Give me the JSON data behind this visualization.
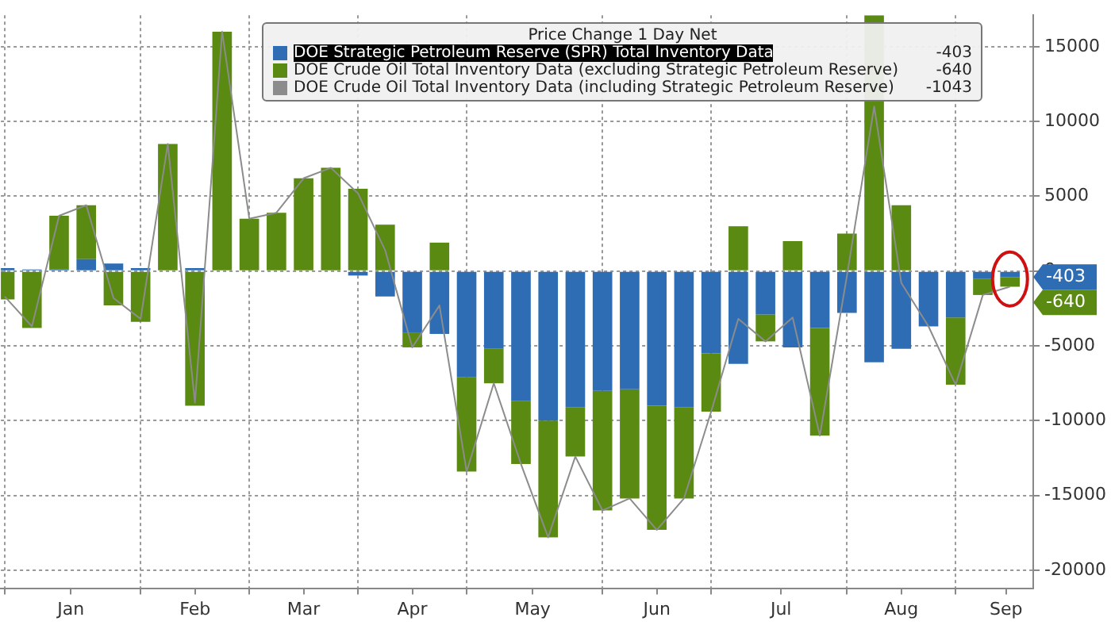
{
  "chart_data": {
    "type": "bar",
    "legend_title": "Price Change 1 Day Net",
    "x": [
      "--01-02",
      "--01-09",
      "--01-16",
      "--01-23",
      "--01-30",
      "--02-06",
      "--02-13",
      "--02-20",
      "--02-27",
      "--03-06",
      "--03-13",
      "--03-20",
      "--03-27",
      "--04-03",
      "--04-10",
      "--04-17",
      "--04-24",
      "--05-01",
      "--05-08",
      "--05-15",
      "--05-22",
      "--05-29",
      "--06-05",
      "--06-12",
      "--06-19",
      "--06-26",
      "--07-03",
      "--07-10",
      "--07-17",
      "--07-24",
      "--07-31",
      "--08-07",
      "--08-14",
      "--08-21",
      "--08-28",
      "--09-04",
      "--09-11",
      "--09-18"
    ],
    "series": [
      {
        "name": "DOE Strategic Petroleum Reserve (SPR) Total Inventory Data",
        "color": "#2e6db4",
        "values": [
          200,
          100,
          100,
          800,
          500,
          200,
          0,
          200,
          0,
          0,
          0,
          0,
          0,
          -300,
          -1700,
          -4100,
          -4200,
          -7100,
          -5200,
          -8700,
          -10000,
          -9100,
          -8000,
          -7900,
          -9000,
          -9100,
          -5500,
          -6200,
          -2900,
          -5100,
          -3800,
          -2800,
          -6100,
          -5200,
          -3700,
          -3100,
          -500,
          -403
        ]
      },
      {
        "name": "DOE Crude Oil Total Inventory Data (excluding Strategic Petroleum Reserve)",
        "color": "#5a8a12",
        "values": [
          -1900,
          -3800,
          3600,
          3600,
          -2300,
          -3400,
          8500,
          -9000,
          16000,
          3500,
          3900,
          6200,
          6900,
          5500,
          3100,
          -1000,
          1900,
          -6300,
          -2300,
          -4200,
          -7800,
          -3300,
          -8000,
          -7300,
          -8300,
          -6100,
          -3900,
          3000,
          -1800,
          2000,
          -7200,
          2500,
          17100,
          4400,
          0,
          -4500,
          -1100,
          -640
        ]
      },
      {
        "name": "DOE Crude Oil Total Inventory Data (including Strategic Petroleum Reserve)",
        "type": "line",
        "color": "#8c8c8c",
        "values": [
          -1700,
          -3700,
          3700,
          4400,
          -1800,
          -3200,
          8500,
          -8800,
          16000,
          3500,
          3900,
          6200,
          6900,
          5200,
          1400,
          -5100,
          -2300,
          -13400,
          -7500,
          -12900,
          -17800,
          -12400,
          -16000,
          -15200,
          -17300,
          -15200,
          -9400,
          -3200,
          -4700,
          -3100,
          -11000,
          -300,
          11000,
          -800,
          -3700,
          -7600,
          -1600,
          -1043
        ]
      }
    ],
    "stacked": true,
    "marker": "none",
    "xlim": [
      "--01-01",
      "--09-24"
    ],
    "xticks": [
      {
        "value": "--01-02",
        "label": null
      },
      {
        "value": "--01-19",
        "label": "Jan"
      },
      {
        "value": "--02-06",
        "label": null
      },
      {
        "value": "--02-20",
        "label": "Feb"
      },
      {
        "value": "--03-06",
        "label": null
      },
      {
        "value": "--03-20",
        "label": "Mar"
      },
      {
        "value": "--04-03",
        "label": null
      },
      {
        "value": "--04-17",
        "label": "Apr"
      },
      {
        "value": "--05-01",
        "label": null
      },
      {
        "value": "--05-18",
        "label": "May"
      },
      {
        "value": "--06-05",
        "label": null
      },
      {
        "value": "--06-19",
        "label": "Jun"
      },
      {
        "value": "--07-03",
        "label": null
      },
      {
        "value": "--07-21",
        "label": "Jul"
      },
      {
        "value": "--08-07",
        "label": null
      },
      {
        "value": "--08-21",
        "label": "Aug"
      },
      {
        "value": "--09-04",
        "label": null
      },
      {
        "value": "--09-17",
        "label": "Sep"
      }
    ],
    "ylim": [
      -21200,
      17100
    ],
    "yticks": [
      -20000,
      -15000,
      -10000,
      -5000,
      0,
      5000,
      10000,
      15000
    ],
    "grid": true,
    "legend": "top",
    "annotations": [
      "-403",
      "-640",
      "-1043",
      "-403",
      "-640"
    ]
  }
}
